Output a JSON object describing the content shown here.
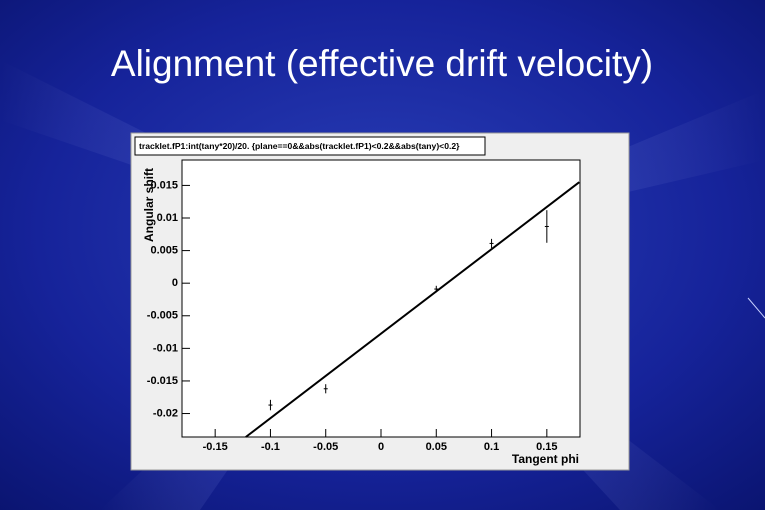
{
  "chart_data": {
    "type": "scatter",
    "title": "Alignment (effective drift velocity)",
    "plot_title": "tracklet.fP1:int(tany*20)/20. {plane==0&&abs(tracklet.fP1)<0.2&&abs(tany)<0.2}",
    "x_label": "Tangent phi",
    "y_label": "Angular shift",
    "x": [
      -0.1,
      -0.05,
      0.05,
      0.1,
      0.15
    ],
    "values": [
      -0.0187,
      -0.0162,
      -0.0009,
      0.0061,
      0.0087
    ],
    "errors": [
      0.0008,
      0.0007,
      0.0005,
      0.0007,
      0.0025
    ],
    "fit": {
      "x": [
        -0.1223,
        0.1793
      ],
      "y": [
        -0.0236,
        0.0155
      ]
    },
    "color": "#000000",
    "xlim": [
      -0.18,
      0.18
    ],
    "ylim": [
      -0.0236,
      0.0189
    ],
    "xticks": [
      -0.15,
      -0.1,
      -0.05,
      0,
      0.05,
      0.1,
      0.15
    ],
    "yticks": [
      -0.02,
      -0.015,
      -0.01,
      -0.005,
      0,
      0.005,
      0.01,
      0.015
    ]
  }
}
